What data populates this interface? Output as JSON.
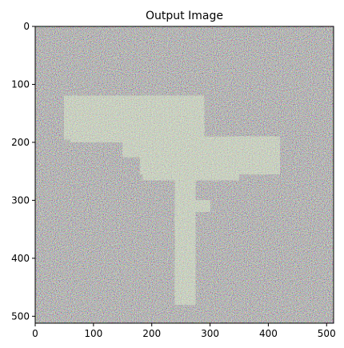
{
  "chart_data": {
    "type": "heatmap",
    "title": "Output Image",
    "xlabel": "",
    "ylabel": "",
    "xlim": [
      0,
      512
    ],
    "ylim": [
      512,
      0
    ],
    "y_inverted": true,
    "grid": false,
    "legend": "none",
    "image_width": 512,
    "image_height": 512,
    "x_ticks": [
      0,
      100,
      200,
      300,
      400,
      500
    ],
    "y_ticks": [
      0,
      100,
      200,
      300,
      400,
      500
    ],
    "content": "high-frequency multicolor noise with a faint bright figure outline near the center",
    "colors": {
      "noise_base": "#6b6460",
      "figure_highlight": "#c8e6c0",
      "axis": "#000000"
    }
  }
}
